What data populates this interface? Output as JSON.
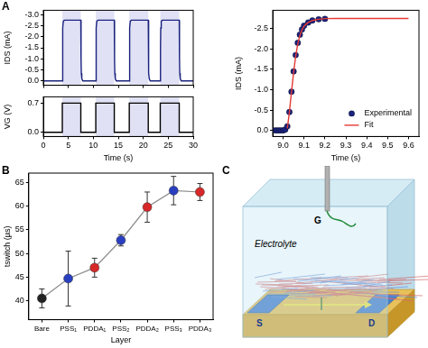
{
  "chart_data": [
    {
      "type": "line",
      "y_label": "IDS (mA)",
      "color": "#1a237e",
      "x": [
        0,
        3.8,
        3.85,
        3.9,
        4.0,
        4.2,
        7.5,
        7.55,
        7.6,
        7.7,
        7.9,
        10.5,
        10.55,
        10.6,
        10.7,
        10.9,
        14.2,
        14.25,
        14.3,
        14.4,
        14.6,
        17.2,
        17.25,
        17.3,
        17.4,
        17.6,
        21.0,
        21.05,
        21.1,
        21.2,
        21.4,
        23.4,
        23.45,
        23.5,
        23.6,
        23.8,
        27.2,
        27.25,
        27.3,
        27.4,
        27.6,
        30
      ],
      "values": [
        0,
        0,
        -1.5,
        -2.4,
        -2.7,
        -2.75,
        -2.75,
        -1.0,
        -0.35,
        -0.1,
        0,
        0,
        -1.5,
        -2.4,
        -2.7,
        -2.75,
        -2.75,
        -1.0,
        -0.35,
        -0.1,
        0,
        0,
        -1.5,
        -2.4,
        -2.7,
        -2.75,
        -2.75,
        -1.0,
        -0.35,
        -0.1,
        0,
        0,
        -1.5,
        -2.4,
        -2.7,
        -2.75,
        -2.75,
        -1.0,
        -0.35,
        -0.1,
        0,
        0
      ],
      "xlim": [
        0,
        30
      ],
      "xticks": [
        0,
        5,
        10,
        15,
        20,
        25,
        30
      ],
      "ylim": [
        0.2,
        -3.2
      ],
      "yticks": [
        {
          "value": -3,
          "label": "-3.0"
        },
        -2.5,
        {
          "value": -2,
          "label": "-2.0"
        },
        -1.5,
        {
          "value": -1,
          "label": "-1.0"
        },
        -0.5,
        {
          "value": 0,
          "label": "0.0"
        }
      ],
      "grid": false,
      "tick_labels": "y"
    },
    {
      "type": "line",
      "x_label": "Time (s)",
      "y_label": "VG (V)",
      "color": "#000000",
      "x": [
        0,
        3.8,
        3.8,
        7.5,
        7.5,
        10.5,
        10.5,
        14.2,
        14.2,
        17.2,
        17.2,
        21.0,
        21.0,
        23.4,
        23.4,
        27.2,
        27.2,
        30
      ],
      "values": [
        0,
        0,
        0.7,
        0.7,
        0,
        0,
        0.7,
        0.7,
        0,
        0,
        0.7,
        0.7,
        0,
        0,
        0.7,
        0.7,
        0,
        0
      ],
      "xlim": [
        0,
        30
      ],
      "xticks": [
        0,
        5,
        10,
        15,
        20,
        25,
        30
      ],
      "ylim": [
        -0.1,
        0.85
      ],
      "yticks": [
        {
          "value": 0,
          "label": "0.0"
        },
        0.7
      ],
      "grid": false
    },
    {
      "type": "scatter",
      "x_label": "Time (s)",
      "y_label": "IDS (mA)",
      "series": [
        {
          "name": "Experimental",
          "type": "scatter",
          "marker": "circle",
          "color": "#1a237e",
          "x": [
            8.96,
            8.97,
            8.98,
            8.99,
            9.0,
            9.01,
            9.02,
            9.03,
            9.04,
            9.05,
            9.06,
            9.07,
            9.08,
            9.09,
            9.1,
            9.12,
            9.14,
            9.17,
            9.2
          ],
          "values": [
            0,
            0,
            0,
            0,
            0,
            -0.02,
            -0.1,
            -0.45,
            -0.95,
            -1.45,
            -1.85,
            -2.15,
            -2.35,
            -2.48,
            -2.57,
            -2.65,
            -2.7,
            -2.73,
            -2.74
          ]
        },
        {
          "name": "Fit",
          "type": "line",
          "color": "#e53935",
          "x": [
            9.02,
            9.03,
            9.04,
            9.05,
            9.06,
            9.07,
            9.08,
            9.09,
            9.1,
            9.12,
            9.14,
            9.17,
            9.2,
            9.25,
            9.3,
            9.4,
            9.5,
            9.6
          ],
          "values": [
            -0.05,
            -0.45,
            -0.95,
            -1.42,
            -1.82,
            -2.12,
            -2.33,
            -2.47,
            -2.56,
            -2.65,
            -2.7,
            -2.73,
            -2.745,
            -2.75,
            -2.75,
            -2.75,
            -2.75,
            -2.75
          ]
        }
      ],
      "xlim": [
        8.95,
        9.65
      ],
      "xticks": [
        {
          "value": 9,
          "label": "9.0"
        },
        9.1,
        9.2,
        9.3,
        9.4,
        9.5,
        9.6
      ],
      "ylim": [
        0.15,
        -2.95
      ],
      "yticks": [
        {
          "value": 0,
          "label": "0.0"
        },
        -0.5,
        {
          "value": -1,
          "label": "-1.0"
        },
        -1.5,
        {
          "value": -2,
          "label": "-2.0"
        },
        -2.5
      ],
      "legend": "lower right",
      "grid": false
    },
    {
      "type": "line",
      "x_label": "Layer",
      "y_label": "tswitch (µs)",
      "marker": "circle",
      "categories": [
        "Bare",
        "PSS₁",
        "PDDA₁",
        "PSS₂",
        "PDDA₂",
        "PSS₃",
        "PDDA₃"
      ],
      "values": [
        40.5,
        44.7,
        47.0,
        52.8,
        59.8,
        63.3,
        63.0
      ],
      "errors": [
        2.0,
        5.8,
        2.0,
        1.2,
        3.2,
        3.0,
        1.8
      ],
      "colors": [
        "#222222",
        "#2a3fc0",
        "#d62828",
        "#2a3fc0",
        "#d62828",
        "#2a3fc0",
        "#d62828"
      ],
      "ylim": [
        36,
        67
      ],
      "yticks": [
        40,
        45,
        50,
        55,
        60,
        65
      ],
      "grid": false
    }
  ],
  "panel_labels": [
    "A",
    "B",
    "C"
  ],
  "diagram": {
    "electrolyte": "Electrolyte",
    "gate": "G",
    "source": "S",
    "drain": "D"
  }
}
